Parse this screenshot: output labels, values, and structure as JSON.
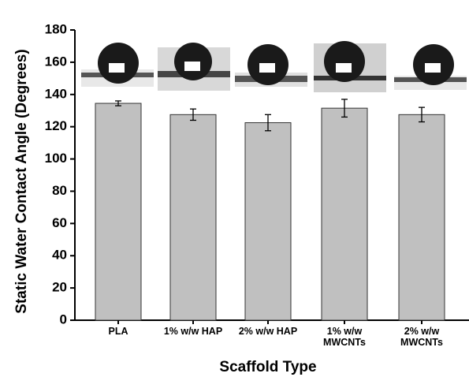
{
  "chart_data": {
    "type": "bar",
    "x_label": "Scaffold Type",
    "y_label": "Static Water Contact Angle (Degrees)",
    "categories": [
      "PLA",
      "1% w/w HAP",
      "2% w/w HAP",
      "1% w/w MWCNTs",
      "2% w/w MWCNTs"
    ],
    "values": [
      134.5,
      127.5,
      122.5,
      131.5,
      127.5
    ],
    "errors": [
      1.5,
      3.5,
      5,
      5.5,
      4.5
    ],
    "color": "#c0c0c0",
    "ylim": [
      0,
      180
    ],
    "yticks": [
      0,
      20,
      40,
      60,
      80,
      100,
      120,
      140,
      160,
      180
    ]
  }
}
